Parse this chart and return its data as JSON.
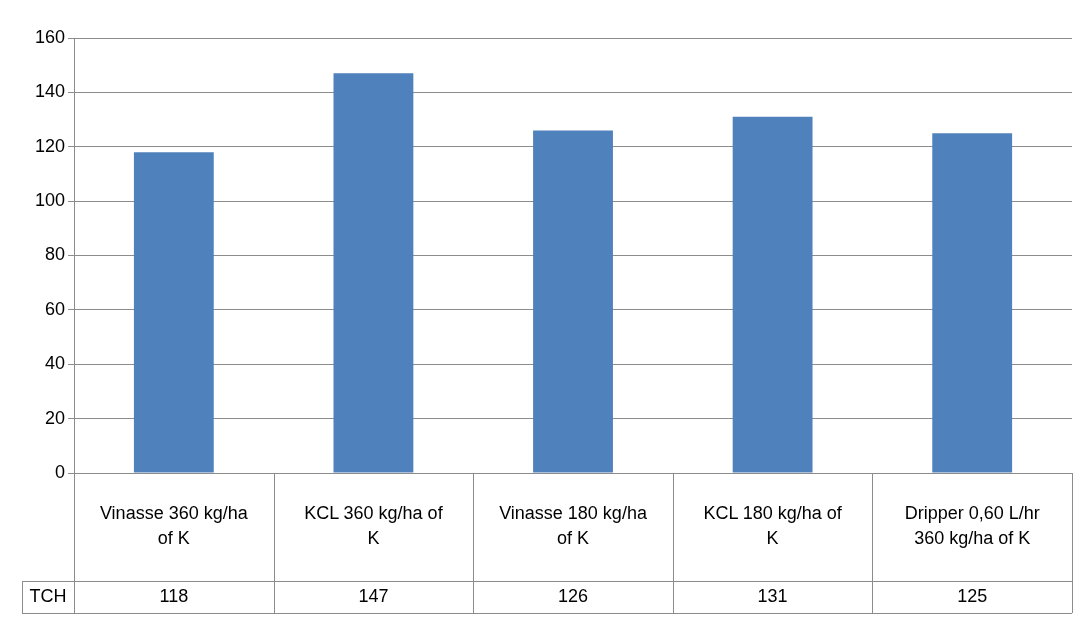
{
  "chart_data": {
    "type": "bar",
    "categories": [
      "Vinasse 360 kg/ha of K",
      "KCL 360 kg/ha of K",
      "Vinasse 180 kg/ha of K",
      "KCL 180 kg/ha of K",
      "Dripper 0,60 L/hr 360 kg/ha of K"
    ],
    "series": [
      {
        "name": "TCH",
        "color": "#4f81bd",
        "values": [
          118,
          147,
          126,
          131,
          125
        ]
      }
    ],
    "ylim": [
      0,
      160
    ],
    "yticks": [
      0,
      20,
      40,
      60,
      80,
      100,
      120,
      140,
      160
    ],
    "grid": "y",
    "legend": false,
    "data_labels": true
  }
}
